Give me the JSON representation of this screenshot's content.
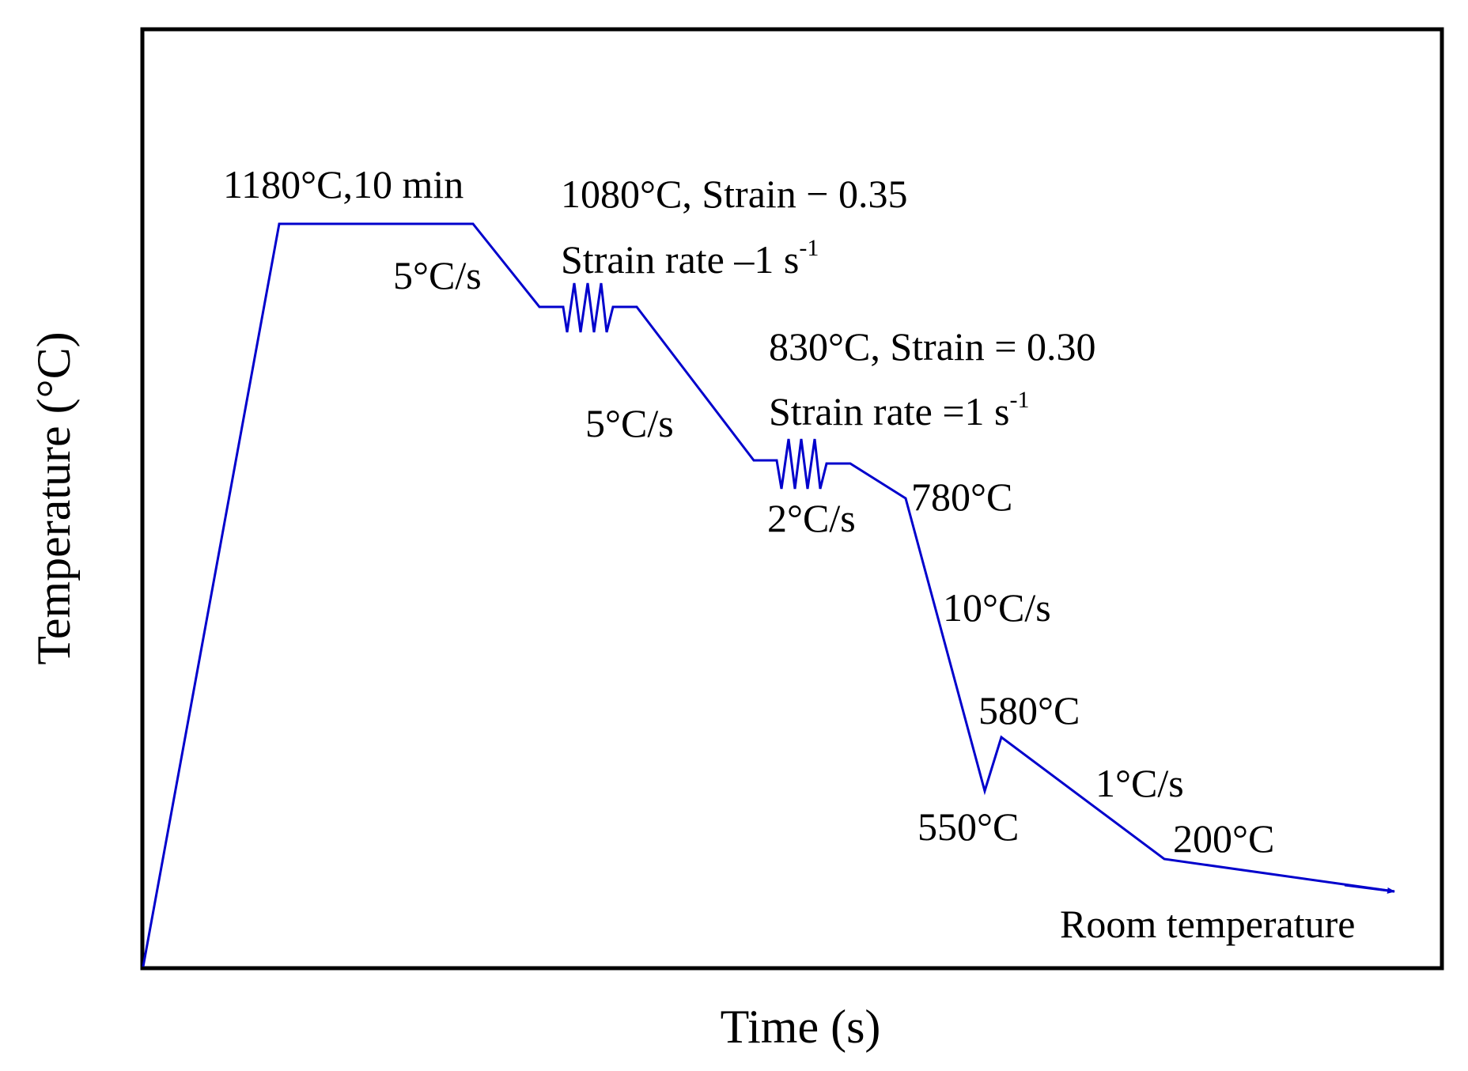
{
  "diagram": {
    "type": "heat-treatment-schedule",
    "x_axis_label": "Time (s)",
    "y_axis_label": "Temperature (°C)",
    "line_color": "#0000cc",
    "annotations": {
      "soak": "1180°C,10 min",
      "rate1": "5°C/s",
      "def1_temp_strain": "1080°C, Strain − 0.35",
      "def1_rate": "Strain rate –1 s",
      "def1_rate_exp": "-1",
      "rate2": "5°C/s",
      "def2_temp_strain": "830°C, Strain = 0.30",
      "def2_rate": "Strain rate =1 s",
      "def2_rate_exp": "-1",
      "rate3": "2°C/s",
      "temp_780": "780°C",
      "rate4": "10°C/s",
      "temp_580": "580°C",
      "temp_550": "550°C",
      "rate5": "1°C/s",
      "temp_200": "200°C",
      "room": "Room temperature"
    }
  }
}
